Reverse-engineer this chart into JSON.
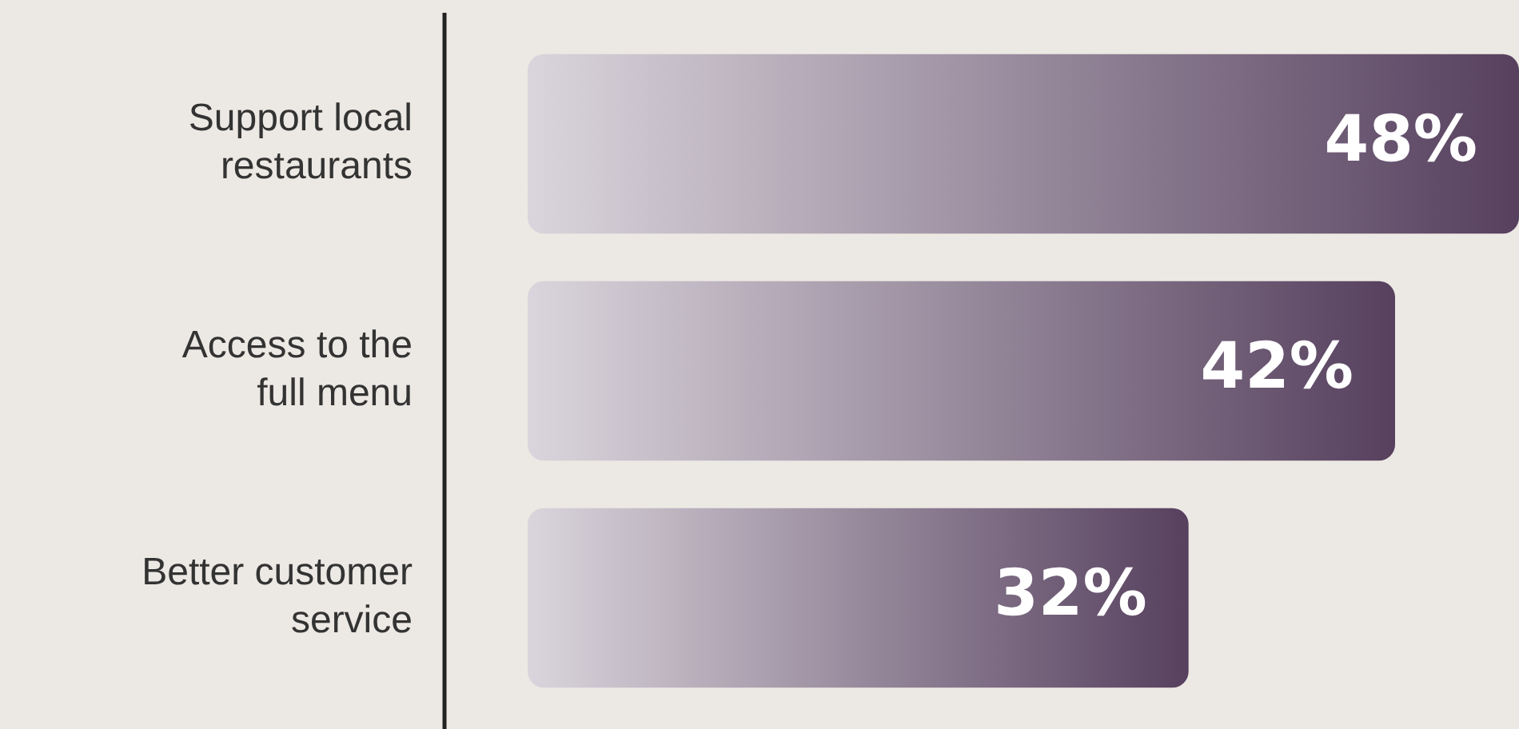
{
  "chart_data": {
    "type": "bar",
    "orientation": "horizontal",
    "categories": [
      "Support local restaurants",
      "Access to the full menu",
      "Better customer service"
    ],
    "values": [
      48,
      42,
      32
    ],
    "value_labels": [
      "48%",
      "42%",
      "32%"
    ],
    "color": "#56405e",
    "tick_labels": "y"
  }
}
